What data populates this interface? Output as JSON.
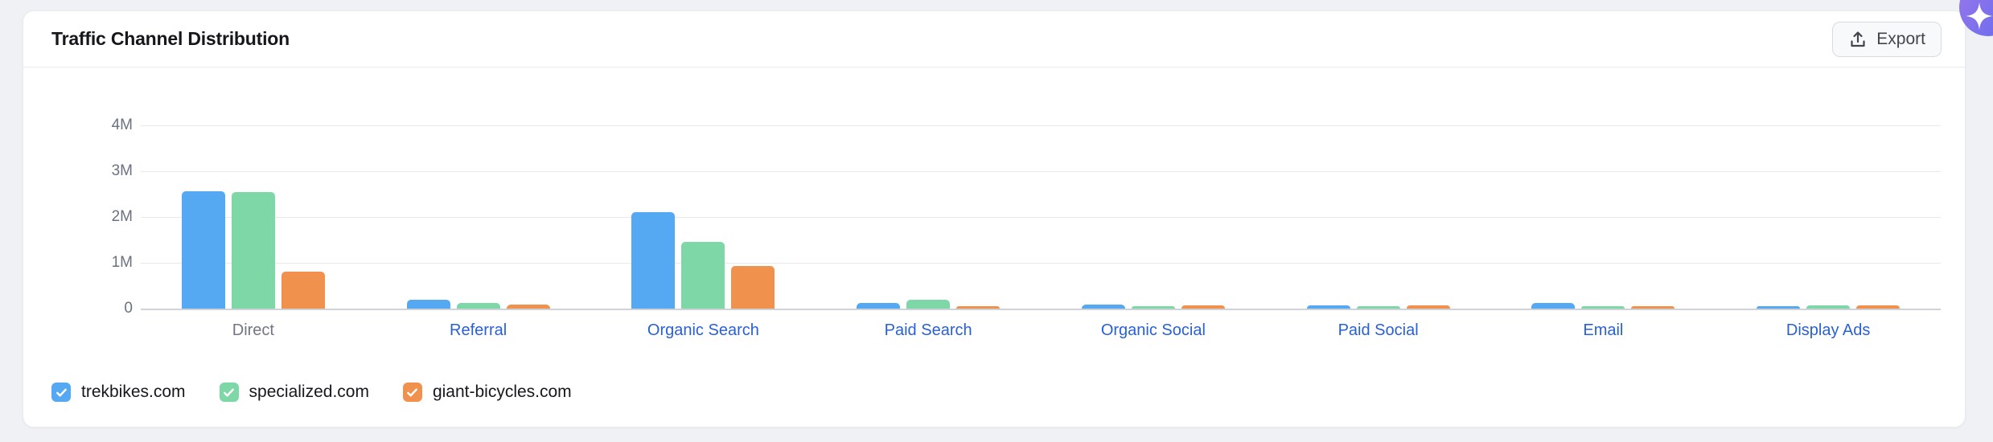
{
  "header": {
    "title": "Traffic Channel Distribution",
    "export_label": "Export"
  },
  "fab": {
    "icon": "sparkles-icon",
    "gradient_start": "#9275ea",
    "gradient_end": "#6a6cf0"
  },
  "chart_data": {
    "type": "bar",
    "title": "Traffic Channel Distribution",
    "categories": [
      "Direct",
      "Referral",
      "Organic Search",
      "Paid Search",
      "Organic Social",
      "Paid Social",
      "Email",
      "Display Ads"
    ],
    "series": [
      {
        "name": "trekbikes.com",
        "color": "#55a9f2",
        "values": [
          2560000,
          200000,
          2100000,
          130000,
          80000,
          70000,
          130000,
          60000
        ]
      },
      {
        "name": "specialized.com",
        "color": "#7ed7a7",
        "values": [
          2540000,
          130000,
          1450000,
          200000,
          60000,
          60000,
          40000,
          70000
        ]
      },
      {
        "name": "giant-bicycles.com",
        "color": "#f0924e",
        "values": [
          800000,
          80000,
          930000,
          50000,
          70000,
          70000,
          60000,
          70000
        ]
      }
    ],
    "y_ticks": [
      "4M",
      "3M",
      "2M",
      "1M",
      "0"
    ],
    "y_max": 4000000,
    "grid": true,
    "legend_position": "bottom",
    "plain_category": "Direct",
    "category_link_color": "#2860d8"
  },
  "legend": {
    "items": [
      {
        "label": "trekbikes.com",
        "color": "#55a9f2",
        "checked": true
      },
      {
        "label": "specialized.com",
        "color": "#7ed7a7",
        "checked": true
      },
      {
        "label": "giant-bicycles.com",
        "color": "#f0924e",
        "checked": true
      }
    ]
  }
}
